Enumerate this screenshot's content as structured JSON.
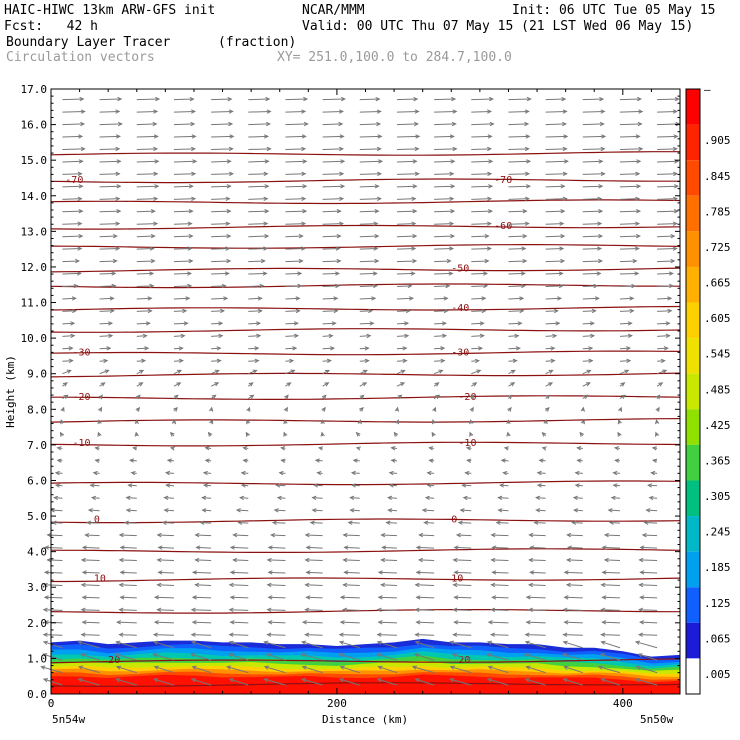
{
  "header": {
    "model": "HAIC-HIWC 13km ARW-GFS init",
    "org": "NCAR/MMM",
    "init": "Init: 06 UTC Tue 05 May 15",
    "fcst": "Fcst:   42 h",
    "valid": "Valid: 00 UTC Thu 07 May 15 (21 LST Wed 06 May 15)",
    "field": "Boundary Layer Tracer",
    "units": "(fraction)",
    "vectors": "Circulation vectors",
    "xy": "XY= 251.0,100.0 to 284.7,100.0"
  },
  "chart_data": {
    "type": "heatmap",
    "title": "Boundary Layer Tracer",
    "units": "(fraction)",
    "xlabel": "Distance (km)",
    "ylabel": "Height (km)",
    "xlim": [
      0,
      440
    ],
    "ylim": [
      0,
      17
    ],
    "x_ticks": [
      0,
      200,
      400
    ],
    "y_ticks": [
      "0.0",
      "1.0",
      "2.0",
      "3.0",
      "4.0",
      "5.0",
      "6.0",
      "7.0",
      "8.0",
      "9.0",
      "10.0",
      "11.0",
      "12.0",
      "13.0",
      "14.0",
      "15.0",
      "16.0",
      "17.0"
    ],
    "x_endpoint_labels": {
      "left": "5n54w",
      "right": "5n50w"
    },
    "colorbar": {
      "labels": [
        "–",
        ".905",
        ".845",
        ".785",
        ".725",
        ".665",
        ".605",
        ".545",
        ".485",
        ".425",
        ".365",
        ".305",
        ".245",
        ".185",
        ".125",
        ".065",
        ".005"
      ],
      "colors": [
        "#ff0000",
        "#ff2400",
        "#ff4a00",
        "#ff7000",
        "#ff9000",
        "#ffb000",
        "#ffd000",
        "#f0e000",
        "#c8e800",
        "#90e000",
        "#40d040",
        "#00c080",
        "#00b8c8",
        "#00a0f0",
        "#1060ff",
        "#1c1cd8",
        "#ffffff"
      ]
    },
    "tracer_layer": {
      "x_km": [
        0,
        20,
        40,
        60,
        80,
        100,
        120,
        140,
        160,
        180,
        200,
        220,
        240,
        260,
        280,
        300,
        320,
        340,
        360,
        380,
        400,
        420,
        440
      ],
      "top_km": [
        1.45,
        1.5,
        1.4,
        1.45,
        1.5,
        1.5,
        1.45,
        1.45,
        1.4,
        1.4,
        1.35,
        1.4,
        1.45,
        1.55,
        1.45,
        1.45,
        1.4,
        1.4,
        1.3,
        1.3,
        1.2,
        1.05,
        1.1
      ]
    },
    "temperature_contours": [
      {
        "label": "-70",
        "y": 14.4,
        "label_x": [
          10,
          310
        ]
      },
      {
        "label": "-60",
        "y": 13.1,
        "label_x": [
          310
        ]
      },
      {
        "label": "-50",
        "y": 11.9,
        "label_x": [
          280
        ]
      },
      {
        "label": "-40",
        "y": 10.8,
        "label_x": [
          280
        ]
      },
      {
        "label": "-30",
        "y": 9.55,
        "label_x": [
          15,
          280
        ]
      },
      {
        "label": "-20",
        "y": 8.3,
        "label_x": [
          15,
          285
        ]
      },
      {
        "label": "-10",
        "y": 7.0,
        "label_x": [
          15,
          285
        ]
      },
      {
        "label": "0",
        "y": 4.85,
        "label_x": [
          30,
          280
        ]
      },
      {
        "label": "10",
        "y": 3.2,
        "label_x": [
          30,
          280
        ]
      },
      {
        "label": "20",
        "y": 0.9,
        "label_x": [
          40,
          285
        ]
      }
    ],
    "unlabeled_contours_km": [
      15.15,
      13.8,
      12.55,
      11.45,
      10.2,
      8.95,
      7.65,
      5.9,
      4.0,
      2.3,
      0.25
    ],
    "vector_field": {
      "note_levels_km": [
        0.5,
        3.0,
        5.0,
        8.0,
        11.0,
        15.0
      ],
      "u_direction": [
        "westward",
        "westward",
        "westward",
        "weak",
        "eastward",
        "eastward"
      ]
    }
  }
}
